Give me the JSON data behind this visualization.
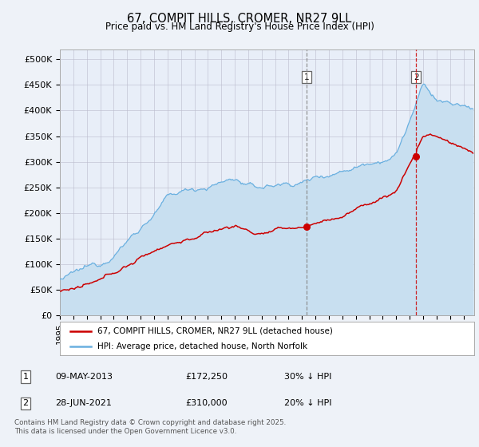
{
  "title": "67, COMPIT HILLS, CROMER, NR27 9LL",
  "subtitle": "Price paid vs. HM Land Registry's House Price Index (HPI)",
  "ylabel_ticks": [
    "£0",
    "£50K",
    "£100K",
    "£150K",
    "£200K",
    "£250K",
    "£300K",
    "£350K",
    "£400K",
    "£450K",
    "£500K"
  ],
  "ytick_values": [
    0,
    50000,
    100000,
    150000,
    200000,
    250000,
    300000,
    350000,
    400000,
    450000,
    500000
  ],
  "ylim": [
    0,
    520000
  ],
  "xlim_start": 1995.0,
  "xlim_end": 2025.8,
  "hpi_color": "#6ab0e0",
  "hpi_fill_color": "#c8dff0",
  "price_color": "#cc0000",
  "marker1_date": 2013.36,
  "marker2_date": 2021.49,
  "marker1_price": 172250,
  "marker2_price": 310000,
  "marker1_label": "09-MAY-2013",
  "marker2_label": "28-JUN-2021",
  "marker1_pct": "30% ↓ HPI",
  "marker2_pct": "20% ↓ HPI",
  "legend_line1": "67, COMPIT HILLS, CROMER, NR27 9LL (detached house)",
  "legend_line2": "HPI: Average price, detached house, North Norfolk",
  "footer": "Contains HM Land Registry data © Crown copyright and database right 2025.\nThis data is licensed under the Open Government Licence v3.0.",
  "background_color": "#eef2f8",
  "plot_bg_color": "#e8eef8"
}
